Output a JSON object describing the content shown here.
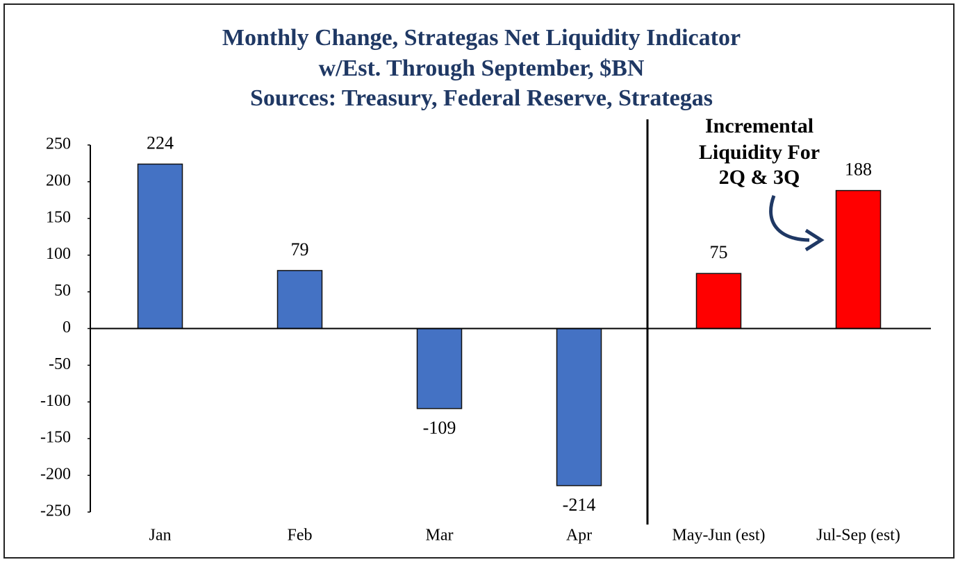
{
  "chart_data": {
    "type": "bar",
    "title": "Monthly Change, Strategas Net Liquidity Indicator",
    "subtitle": [
      "w/Est. Through September, $BN",
      "Sources: Treasury, Federal Reserve, Strategas"
    ],
    "categories": [
      "Jan",
      "Feb",
      "Mar",
      "Apr",
      "May-Jun (est)",
      "Jul-Sep (est)"
    ],
    "values": [
      224,
      79,
      -109,
      -214,
      75,
      188
    ],
    "colors": [
      "#4472c4",
      "#4472c4",
      "#4472c4",
      "#4472c4",
      "#ff0000",
      "#ff0000"
    ],
    "ylim": [
      -250,
      250
    ],
    "yticks": [
      -250,
      -200,
      -150,
      -100,
      -50,
      0,
      50,
      100,
      150,
      200,
      250
    ],
    "grid": false,
    "annotation": [
      "Incremental",
      "Liquidity For",
      "2Q & 3Q"
    ]
  }
}
